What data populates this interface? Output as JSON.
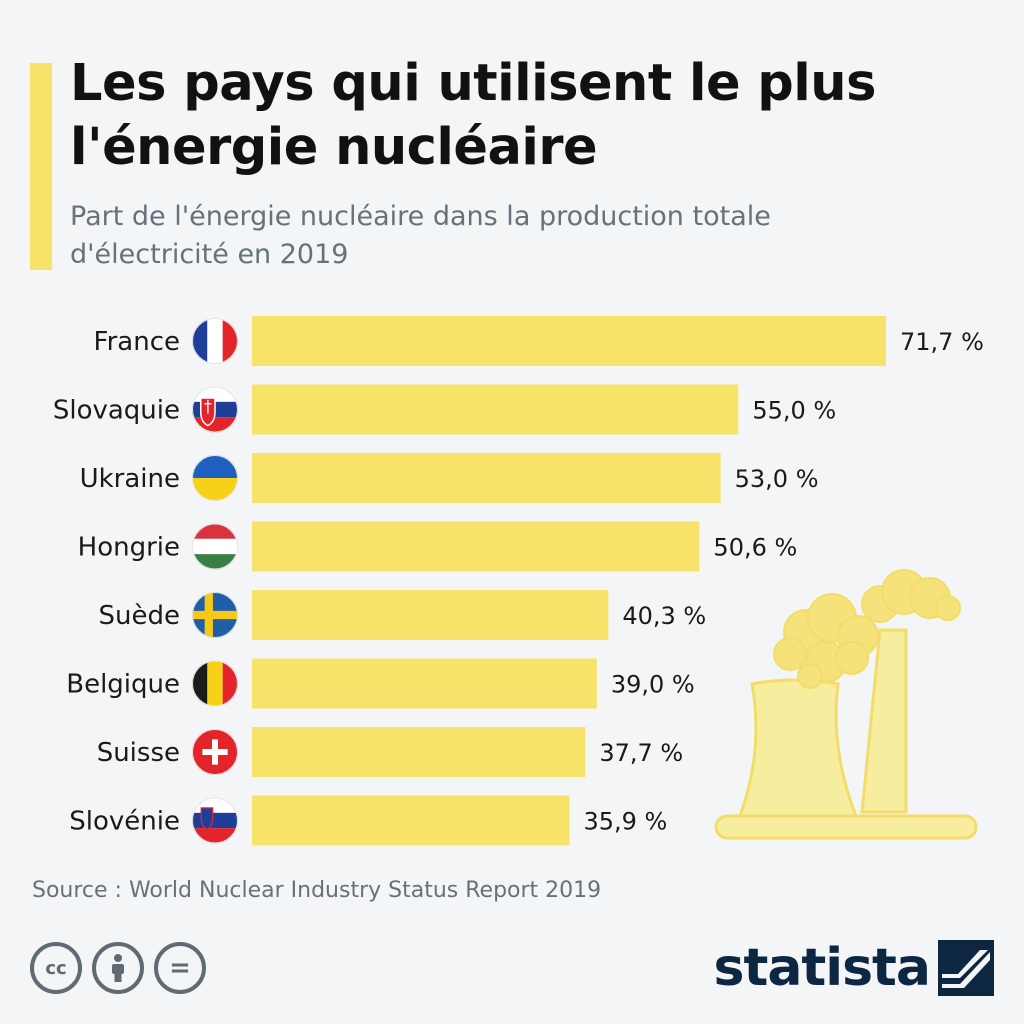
{
  "title": "Les pays qui utilisent le plus l'énergie nucléaire",
  "subtitle": "Part de l'énergie nucléaire dans la production totale d'électricité en 2019",
  "source": "Source : World Nuclear Industry Status Report 2019",
  "brand": "statista",
  "licence": {
    "cc_label": "cc",
    "nd_label": "="
  },
  "colors": {
    "bar": "#f8e36a",
    "accent": "#f8e36a",
    "background": "#f3f5f6",
    "title": "#111111",
    "subtitle": "#66727b",
    "brand": "#0d2743"
  },
  "chart_data": {
    "type": "bar",
    "orientation": "horizontal",
    "categories": [
      "France",
      "Slovaquie",
      "Ukraine",
      "Hongrie",
      "Suède",
      "Belgique",
      "Suisse",
      "Slovénie"
    ],
    "values": [
      71.7,
      55.0,
      53.0,
      50.6,
      40.3,
      39.0,
      37.7,
      35.9
    ],
    "value_labels": [
      "71,7 %",
      "55,0 %",
      "53,0 %",
      "50,6 %",
      "40,3 %",
      "39,0 %",
      "37,7 %",
      "35,9 %"
    ],
    "flags": [
      "flag-france-icon",
      "flag-slovakia-icon",
      "flag-ukraine-icon",
      "flag-hungary-icon",
      "flag-sweden-icon",
      "flag-belgium-icon",
      "flag-switzerland-icon",
      "flag-slovenia-icon"
    ],
    "unit": "%",
    "xlim": [
      0,
      71.7
    ],
    "grid": false,
    "legend": "none"
  }
}
